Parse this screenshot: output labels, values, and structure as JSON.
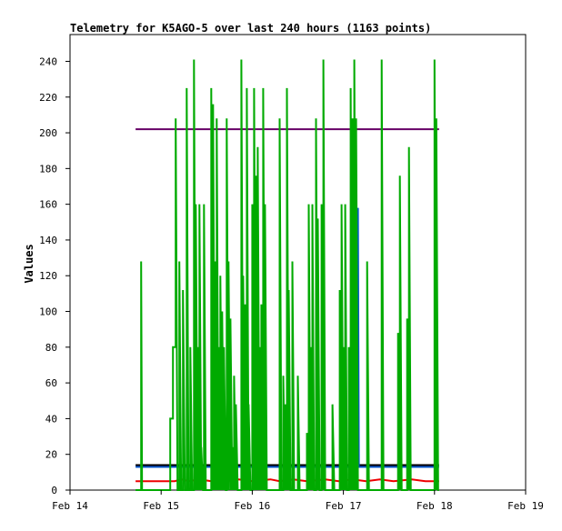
{
  "chart_data": {
    "type": "line",
    "title": "Telemetry for K5AGO-5 over last 240 hours (1163 points)",
    "xlabel": "",
    "ylabel": "Values",
    "x_range": [
      0,
      5
    ],
    "ylim": [
      0,
      255
    ],
    "x_ticks": [
      {
        "x": 0,
        "label": "Feb 14"
      },
      {
        "x": 1,
        "label": "Feb 15"
      },
      {
        "x": 2,
        "label": "Feb 16"
      },
      {
        "x": 3,
        "label": "Feb 17"
      },
      {
        "x": 4,
        "label": "Feb 18"
      },
      {
        "x": 5,
        "label": "Feb 19"
      }
    ],
    "y_ticks": [
      0,
      20,
      40,
      60,
      80,
      100,
      120,
      140,
      160,
      180,
      200,
      220,
      240
    ],
    "grid": false,
    "legend": "none",
    "colors": {
      "purple_series": "#660066",
      "green_series": "#00aa00",
      "red_series": "#ee0000",
      "blue_series": "#0055cc",
      "black_series": "#000000"
    },
    "series": [
      {
        "color": "#660066",
        "points": [
          [
            0.72,
            202
          ],
          [
            4.05,
            202
          ]
        ]
      },
      {
        "color": "#ee0000",
        "points": [
          [
            0.72,
            5
          ],
          [
            1.15,
            5
          ],
          [
            1.22,
            6
          ],
          [
            1.3,
            5
          ],
          [
            1.42,
            6
          ],
          [
            1.55,
            5
          ],
          [
            1.7,
            5
          ],
          [
            1.85,
            6
          ],
          [
            2.0,
            5
          ],
          [
            2.2,
            6
          ],
          [
            2.3,
            5
          ],
          [
            2.45,
            6
          ],
          [
            2.6,
            5
          ],
          [
            2.8,
            6
          ],
          [
            2.95,
            5
          ],
          [
            3.1,
            6
          ],
          [
            3.25,
            5
          ],
          [
            3.4,
            6
          ],
          [
            3.55,
            5
          ],
          [
            3.75,
            6
          ],
          [
            3.9,
            5
          ],
          [
            4.05,
            5
          ]
        ]
      },
      {
        "color": "#000000",
        "points": [
          [
            0.72,
            14
          ],
          [
            4.05,
            14
          ]
        ]
      },
      {
        "color": "#0055cc",
        "points": [
          [
            0.72,
            13
          ],
          [
            3.16,
            13
          ],
          [
            3.16,
            158
          ],
          [
            3.17,
            13
          ],
          [
            4.05,
            13
          ]
        ]
      },
      {
        "color": "#00aa00",
        "points": [
          [
            0.72,
            0
          ],
          [
            0.78,
            0
          ],
          [
            0.78,
            128
          ],
          [
            0.79,
            0
          ],
          [
            1.1,
            0
          ],
          [
            1.1,
            40
          ],
          [
            1.13,
            40
          ],
          [
            1.13,
            80
          ],
          [
            1.16,
            80
          ],
          [
            1.16,
            208
          ],
          [
            1.18,
            0
          ],
          [
            1.2,
            0
          ],
          [
            1.2,
            128
          ],
          [
            1.22,
            0
          ],
          [
            1.24,
            0
          ],
          [
            1.24,
            112
          ],
          [
            1.26,
            0
          ],
          [
            1.28,
            0
          ],
          [
            1.28,
            225
          ],
          [
            1.3,
            0
          ],
          [
            1.32,
            0
          ],
          [
            1.32,
            80
          ],
          [
            1.34,
            0
          ],
          [
            1.36,
            0
          ],
          [
            1.36,
            241
          ],
          [
            1.38,
            0
          ],
          [
            1.38,
            160
          ],
          [
            1.4,
            0
          ],
          [
            1.4,
            80
          ],
          [
            1.42,
            0
          ],
          [
            1.42,
            160
          ],
          [
            1.44,
            0
          ],
          [
            1.44,
            24
          ],
          [
            1.46,
            0
          ],
          [
            1.47,
            0
          ],
          [
            1.47,
            160
          ],
          [
            1.49,
            0
          ],
          [
            1.55,
            0
          ],
          [
            1.55,
            225
          ],
          [
            1.57,
            0
          ],
          [
            1.57,
            216
          ],
          [
            1.59,
            0
          ],
          [
            1.59,
            128
          ],
          [
            1.61,
            0
          ],
          [
            1.61,
            208
          ],
          [
            1.63,
            0
          ],
          [
            1.63,
            80
          ],
          [
            1.65,
            0
          ],
          [
            1.65,
            120
          ],
          [
            1.67,
            0
          ],
          [
            1.67,
            100
          ],
          [
            1.69,
            0
          ],
          [
            1.69,
            80
          ],
          [
            1.71,
            0
          ],
          [
            1.72,
            0
          ],
          [
            1.72,
            208
          ],
          [
            1.74,
            0
          ],
          [
            1.74,
            128
          ],
          [
            1.76,
            0
          ],
          [
            1.76,
            96
          ],
          [
            1.78,
            0
          ],
          [
            1.78,
            24
          ],
          [
            1.8,
            0
          ],
          [
            1.8,
            64
          ],
          [
            1.82,
            0
          ],
          [
            1.82,
            48
          ],
          [
            1.84,
            0
          ],
          [
            1.88,
            0
          ],
          [
            1.88,
            241
          ],
          [
            1.9,
            0
          ],
          [
            1.9,
            120
          ],
          [
            1.92,
            0
          ],
          [
            1.92,
            104
          ],
          [
            1.94,
            0
          ],
          [
            1.94,
            225
          ],
          [
            1.96,
            0
          ],
          [
            1.96,
            48
          ],
          [
            1.98,
            0
          ],
          [
            2.0,
            0
          ],
          [
            2.0,
            160
          ],
          [
            2.02,
            0
          ],
          [
            2.02,
            225
          ],
          [
            2.04,
            0
          ],
          [
            2.04,
            176
          ],
          [
            2.06,
            0
          ],
          [
            2.06,
            192
          ],
          [
            2.08,
            0
          ],
          [
            2.08,
            80
          ],
          [
            2.1,
            0
          ],
          [
            2.1,
            104
          ],
          [
            2.12,
            0
          ],
          [
            2.12,
            225
          ],
          [
            2.14,
            0
          ],
          [
            2.14,
            160
          ],
          [
            2.16,
            0
          ],
          [
            2.3,
            0
          ],
          [
            2.3,
            208
          ],
          [
            2.32,
            0
          ],
          [
            2.34,
            0
          ],
          [
            2.34,
            64
          ],
          [
            2.36,
            0
          ],
          [
            2.36,
            48
          ],
          [
            2.38,
            0
          ],
          [
            2.38,
            225
          ],
          [
            2.4,
            0
          ],
          [
            2.4,
            112
          ],
          [
            2.42,
            0
          ],
          [
            2.44,
            0
          ],
          [
            2.44,
            128
          ],
          [
            2.46,
            0
          ],
          [
            2.5,
            0
          ],
          [
            2.5,
            64
          ],
          [
            2.52,
            0
          ],
          [
            2.6,
            0
          ],
          [
            2.6,
            32
          ],
          [
            2.62,
            0
          ],
          [
            2.62,
            160
          ],
          [
            2.64,
            0
          ],
          [
            2.64,
            80
          ],
          [
            2.66,
            0
          ],
          [
            2.66,
            160
          ],
          [
            2.68,
            0
          ],
          [
            2.7,
            0
          ],
          [
            2.7,
            208
          ],
          [
            2.72,
            0
          ],
          [
            2.72,
            152
          ],
          [
            2.74,
            0
          ],
          [
            2.76,
            0
          ],
          [
            2.76,
            160
          ],
          [
            2.78,
            0
          ],
          [
            2.78,
            241
          ],
          [
            2.8,
            0
          ],
          [
            2.88,
            0
          ],
          [
            2.88,
            48
          ],
          [
            2.9,
            0
          ],
          [
            2.96,
            0
          ],
          [
            2.96,
            112
          ],
          [
            2.98,
            0
          ],
          [
            2.98,
            160
          ],
          [
            3.0,
            0
          ],
          [
            3.0,
            80
          ],
          [
            3.02,
            0
          ],
          [
            3.02,
            160
          ],
          [
            3.04,
            0
          ],
          [
            3.06,
            0
          ],
          [
            3.06,
            80
          ],
          [
            3.08,
            0
          ],
          [
            3.08,
            225
          ],
          [
            3.1,
            0
          ],
          [
            3.1,
            208
          ],
          [
            3.12,
            0
          ],
          [
            3.12,
            241
          ],
          [
            3.14,
            0
          ],
          [
            3.14,
            208
          ],
          [
            3.16,
            0
          ],
          [
            3.26,
            0
          ],
          [
            3.26,
            128
          ],
          [
            3.28,
            0
          ],
          [
            3.42,
            0
          ],
          [
            3.42,
            241
          ],
          [
            3.44,
            0
          ],
          [
            3.6,
            0
          ],
          [
            3.6,
            88
          ],
          [
            3.62,
            0
          ],
          [
            3.62,
            176
          ],
          [
            3.64,
            0
          ],
          [
            3.7,
            0
          ],
          [
            3.7,
            96
          ],
          [
            3.72,
            0
          ],
          [
            3.72,
            192
          ],
          [
            3.74,
            0
          ],
          [
            4.0,
            0
          ],
          [
            4.0,
            241
          ],
          [
            4.02,
            0
          ],
          [
            4.02,
            208
          ],
          [
            4.04,
            0
          ],
          [
            4.05,
            0
          ]
        ]
      }
    ]
  }
}
